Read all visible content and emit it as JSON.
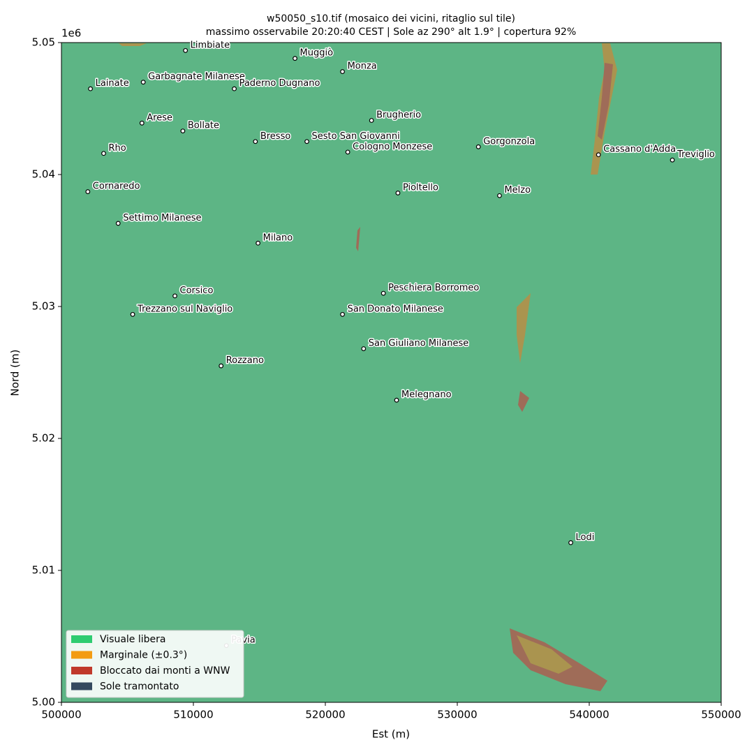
{
  "chart_data": {
    "type": "scatter",
    "title": "w50050_s10.tif  (mosaico dei vicini, ritaglio sul tile)",
    "subtitle": "massimo osservabile 20:20:40 CEST | Sole az 290° alt 1.9° | copertura 92%",
    "x_label": "Est (m)",
    "y_label": "Nord (m)",
    "y_offset_label": "1e6",
    "xlim": [
      500000,
      550000
    ],
    "ylim": [
      5000000,
      5050000
    ],
    "xticks": [
      500000,
      510000,
      520000,
      530000,
      540000,
      550000
    ],
    "yticks": [
      {
        "value": 5000000,
        "label": "5.00"
      },
      {
        "value": 5010000,
        "label": "5.01"
      },
      {
        "value": 5020000,
        "label": "5.02"
      },
      {
        "value": 5030000,
        "label": "5.03"
      },
      {
        "value": 5040000,
        "label": "5.04"
      },
      {
        "value": 5050000,
        "label": "5.05"
      }
    ],
    "grid": false,
    "background_color": "#5db585",
    "marker_color": "#ffffff",
    "marker_edge_color": "#000000",
    "labels": [
      "Limbiate",
      "Muggiò",
      "Monza",
      "Lainate",
      "Garbagnate Milanese",
      "Paderno Dugnano",
      "Brugherio",
      "Arese",
      "Bollate",
      "Bresso",
      "Sesto San Giovanni",
      "Cologno Monzese",
      "Gorgonzola",
      "Rho",
      "Cassano d'Adda",
      "Treviglio",
      "Cornaredo",
      "Pioltello",
      "Melzo",
      "Settimo Milanese",
      "Milano",
      "Peschiera Borromeo",
      "Corsico",
      "Trezzano sul Naviglio",
      "San Donato Milanese",
      "San Giuliano Milanese",
      "Rozzano",
      "Melegnano",
      "Lodi",
      "Pavia"
    ],
    "x": [
      509400,
      517700,
      521300,
      502200,
      506200,
      513100,
      523500,
      506100,
      509200,
      514700,
      518600,
      521700,
      531600,
      503200,
      540700,
      546300,
      502000,
      525500,
      533200,
      504300,
      514900,
      524400,
      508600,
      505400,
      521300,
      522900,
      512100,
      525400,
      538600,
      512500
    ],
    "y": [
      5049400,
      5048800,
      5047800,
      5046500,
      5047000,
      5046500,
      5044100,
      5043900,
      5043300,
      5042500,
      5042500,
      5041700,
      5042100,
      5041600,
      5041500,
      5041100,
      5038700,
      5038600,
      5038400,
      5036300,
      5034800,
      5031000,
      5030800,
      5029400,
      5029400,
      5026800,
      5025500,
      5022900,
      5012100,
      5004300
    ],
    "legend_position": "lower left",
    "legend": [
      {
        "name": "Visuale libera",
        "color": "#2ecc71"
      },
      {
        "name": "Marginale (±0.3°)",
        "color": "#f39c12"
      },
      {
        "name": "Bloccato dai monti a WNW",
        "color": "#c0392b"
      },
      {
        "name": "Sole tramontato",
        "color": "#34495e"
      }
    ]
  }
}
